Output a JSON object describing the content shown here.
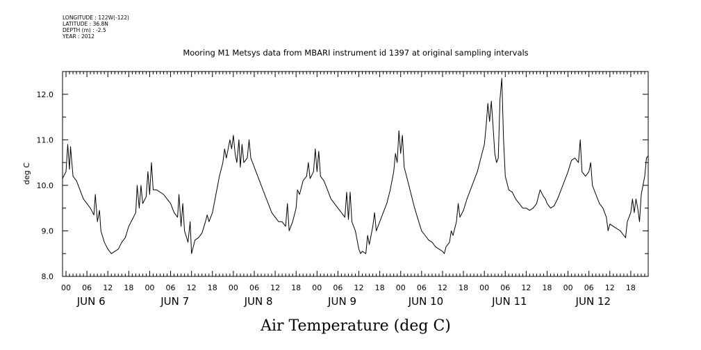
{
  "meta": {
    "longitude": "LONGITUDE : 122W(-122)",
    "latitude": "LATITUDE : 36.8N",
    "depth": "DEPTH (m) : -2.5",
    "year": "YEAR : 2012"
  },
  "chart_data": {
    "type": "line",
    "title": "Mooring M1 Metsys data from MBARI instrument id 1397 at original sampling intervals",
    "xlabel": "Air Temperature (deg C)",
    "ylabel": "deg C",
    "ylim": [
      8.0,
      12.5
    ],
    "yticks": [
      8.0,
      9.0,
      10.0,
      11.0,
      12.0
    ],
    "ytick_labels": [
      "8.0",
      "9.0",
      "10.0",
      "11.0",
      "12.0"
    ],
    "xlim_hours": [
      -1,
      167
    ],
    "hour_tick_labels": [
      "00",
      "06",
      "12",
      "18",
      "00",
      "06",
      "12",
      "18",
      "00",
      "06",
      "12",
      "18",
      "00",
      "06",
      "12",
      "18",
      "00",
      "06",
      "12",
      "18",
      "00",
      "06",
      "12",
      "18",
      "00",
      "06",
      "12",
      "18"
    ],
    "day_labels": [
      "JUN 6",
      "JUN 7",
      "JUN 8",
      "JUN 9",
      "JUN 10",
      "JUN 11",
      "JUN 12"
    ],
    "series": [
      {
        "name": "Air Temperature",
        "color": "#000000",
        "points": [
          [
            -1,
            10.15
          ],
          [
            0,
            10.3
          ],
          [
            0.5,
            10.9
          ],
          [
            1,
            10.35
          ],
          [
            1.3,
            10.85
          ],
          [
            2,
            10.2
          ],
          [
            3,
            10.1
          ],
          [
            5,
            9.7
          ],
          [
            7,
            9.5
          ],
          [
            8,
            9.35
          ],
          [
            8.4,
            9.8
          ],
          [
            9,
            9.2
          ],
          [
            9.6,
            9.45
          ],
          [
            10,
            9.0
          ],
          [
            11,
            8.75
          ],
          [
            12,
            8.6
          ],
          [
            13,
            8.5
          ],
          [
            14,
            8.55
          ],
          [
            15,
            8.6
          ],
          [
            16,
            8.75
          ],
          [
            17,
            8.85
          ],
          [
            18,
            9.1
          ],
          [
            19,
            9.25
          ],
          [
            20,
            9.4
          ],
          [
            20.4,
            10.0
          ],
          [
            21,
            9.5
          ],
          [
            21.5,
            10.0
          ],
          [
            22,
            9.6
          ],
          [
            23,
            9.75
          ],
          [
            23.5,
            10.3
          ],
          [
            24,
            9.8
          ],
          [
            24.5,
            10.5
          ],
          [
            25,
            9.9
          ],
          [
            26,
            9.9
          ],
          [
            28,
            9.8
          ],
          [
            29,
            9.7
          ],
          [
            30,
            9.6
          ],
          [
            31,
            9.4
          ],
          [
            32,
            9.3
          ],
          [
            32.4,
            9.8
          ],
          [
            33,
            9.1
          ],
          [
            33.5,
            9.6
          ],
          [
            34,
            9.0
          ],
          [
            35,
            8.75
          ],
          [
            35.6,
            9.2
          ],
          [
            36,
            8.5
          ],
          [
            37,
            8.8
          ],
          [
            38,
            8.85
          ],
          [
            39,
            8.95
          ],
          [
            40,
            9.2
          ],
          [
            40.5,
            9.35
          ],
          [
            41,
            9.2
          ],
          [
            42,
            9.4
          ],
          [
            43,
            9.8
          ],
          [
            44,
            10.2
          ],
          [
            45,
            10.5
          ],
          [
            45.5,
            10.8
          ],
          [
            46,
            10.6
          ],
          [
            47,
            11.0
          ],
          [
            47.5,
            10.8
          ],
          [
            48,
            11.1
          ],
          [
            48.5,
            10.7
          ],
          [
            49,
            10.5
          ],
          [
            49.6,
            11.0
          ],
          [
            50,
            10.4
          ],
          [
            50.5,
            10.9
          ],
          [
            51,
            10.5
          ],
          [
            52,
            10.6
          ],
          [
            52.5,
            11.0
          ],
          [
            53,
            10.6
          ],
          [
            54,
            10.4
          ],
          [
            55,
            10.2
          ],
          [
            56,
            10.0
          ],
          [
            57,
            9.8
          ],
          [
            58,
            9.6
          ],
          [
            59,
            9.4
          ],
          [
            60,
            9.3
          ],
          [
            61,
            9.2
          ],
          [
            62,
            9.2
          ],
          [
            63,
            9.1
          ],
          [
            63.5,
            9.6
          ],
          [
            64,
            9.0
          ],
          [
            65,
            9.2
          ],
          [
            66,
            9.5
          ],
          [
            66.4,
            9.9
          ],
          [
            67,
            9.8
          ],
          [
            68,
            10.1
          ],
          [
            69,
            10.2
          ],
          [
            69.5,
            10.5
          ],
          [
            70,
            10.15
          ],
          [
            71,
            10.3
          ],
          [
            71.5,
            10.8
          ],
          [
            72,
            10.3
          ],
          [
            72.5,
            10.75
          ],
          [
            73,
            10.2
          ],
          [
            74,
            10.1
          ],
          [
            75,
            9.9
          ],
          [
            76,
            9.7
          ],
          [
            77,
            9.6
          ],
          [
            78,
            9.5
          ],
          [
            79,
            9.4
          ],
          [
            80,
            9.3
          ],
          [
            80.5,
            9.85
          ],
          [
            81,
            9.25
          ],
          [
            81.5,
            9.85
          ],
          [
            82,
            9.2
          ],
          [
            83,
            9.0
          ],
          [
            84,
            8.6
          ],
          [
            84.5,
            8.5
          ],
          [
            85,
            8.55
          ],
          [
            86,
            8.5
          ],
          [
            86.5,
            8.9
          ],
          [
            87,
            8.7
          ],
          [
            88,
            9.1
          ],
          [
            88.5,
            9.4
          ],
          [
            89,
            9.0
          ],
          [
            90,
            9.2
          ],
          [
            91,
            9.4
          ],
          [
            92,
            9.6
          ],
          [
            93,
            9.9
          ],
          [
            94,
            10.3
          ],
          [
            94.5,
            10.7
          ],
          [
            95,
            10.5
          ],
          [
            95.5,
            11.2
          ],
          [
            96,
            10.7
          ],
          [
            96.5,
            11.1
          ],
          [
            97,
            10.4
          ],
          [
            98,
            10.1
          ],
          [
            99,
            9.8
          ],
          [
            100,
            9.5
          ],
          [
            101,
            9.25
          ],
          [
            102,
            9.0
          ],
          [
            103,
            8.9
          ],
          [
            104,
            8.8
          ],
          [
            105,
            8.75
          ],
          [
            106,
            8.65
          ],
          [
            107,
            8.6
          ],
          [
            108,
            8.55
          ],
          [
            108.5,
            8.5
          ],
          [
            109,
            8.65
          ],
          [
            110,
            8.75
          ],
          [
            110.5,
            9.0
          ],
          [
            111,
            8.9
          ],
          [
            112,
            9.2
          ],
          [
            112.5,
            9.6
          ],
          [
            113,
            9.3
          ],
          [
            114,
            9.45
          ],
          [
            115,
            9.7
          ],
          [
            116,
            9.9
          ],
          [
            117,
            10.1
          ],
          [
            118,
            10.3
          ],
          [
            119,
            10.6
          ],
          [
            120,
            10.9
          ],
          [
            120.5,
            11.3
          ],
          [
            121,
            11.8
          ],
          [
            121.5,
            11.4
          ],
          [
            122,
            11.85
          ],
          [
            122.5,
            11.3
          ],
          [
            123,
            10.7
          ],
          [
            123.5,
            10.5
          ],
          [
            124,
            10.6
          ],
          [
            124.5,
            11.9
          ],
          [
            125,
            12.35
          ],
          [
            125.5,
            11.0
          ],
          [
            126,
            10.2
          ],
          [
            127,
            9.9
          ],
          [
            128,
            9.85
          ],
          [
            129,
            9.7
          ],
          [
            130,
            9.6
          ],
          [
            131,
            9.5
          ],
          [
            132,
            9.5
          ],
          [
            133,
            9.45
          ],
          [
            134,
            9.5
          ],
          [
            135,
            9.6
          ],
          [
            136,
            9.9
          ],
          [
            137,
            9.75
          ],
          [
            137.5,
            9.7
          ],
          [
            138,
            9.6
          ],
          [
            139,
            9.5
          ],
          [
            140,
            9.55
          ],
          [
            141,
            9.7
          ],
          [
            142,
            9.9
          ],
          [
            143,
            10.1
          ],
          [
            144,
            10.3
          ],
          [
            145,
            10.55
          ],
          [
            146,
            10.6
          ],
          [
            147,
            10.5
          ],
          [
            147.5,
            11.0
          ],
          [
            148,
            10.3
          ],
          [
            149,
            10.2
          ],
          [
            150,
            10.3
          ],
          [
            150.5,
            10.5
          ],
          [
            151,
            10.0
          ],
          [
            152,
            9.8
          ],
          [
            153,
            9.6
          ],
          [
            154,
            9.5
          ],
          [
            155,
            9.3
          ],
          [
            155.5,
            9.0
          ],
          [
            156,
            9.15
          ],
          [
            157,
            9.1
          ],
          [
            158,
            9.05
          ],
          [
            159,
            9.0
          ],
          [
            160,
            8.9
          ],
          [
            160.5,
            8.85
          ],
          [
            161,
            9.2
          ],
          [
            162,
            9.4
          ],
          [
            162.5,
            9.7
          ],
          [
            163,
            9.4
          ],
          [
            163.5,
            9.7
          ],
          [
            164,
            9.5
          ],
          [
            164.5,
            9.2
          ],
          [
            165,
            9.8
          ],
          [
            165.5,
            10.0
          ],
          [
            166,
            10.2
          ],
          [
            166.5,
            10.6
          ],
          [
            167,
            10.65
          ]
        ]
      }
    ]
  }
}
